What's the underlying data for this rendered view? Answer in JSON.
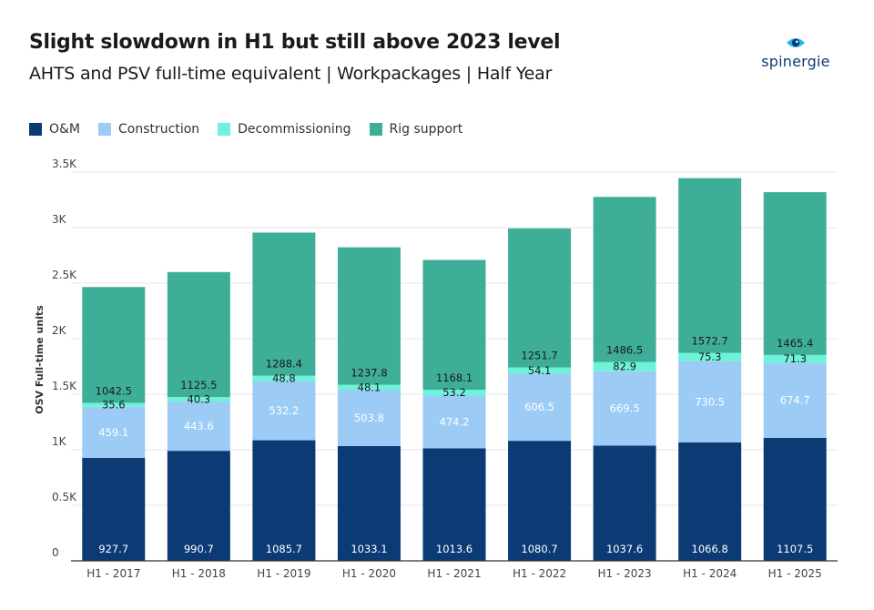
{
  "header": {
    "title": "Slight slowdown in H1 but still above 2023 level",
    "subtitle": "AHTS and PSV full-time equivalent | Workpackages | Half Year"
  },
  "brand": {
    "name": "spinergie",
    "icon": "eye-logo-icon"
  },
  "colors": {
    "om": "#0b3a75",
    "construction": "#9ccbf6",
    "decommissioning": "#6ef2d9",
    "rig_support": "#3fae98"
  },
  "legend": [
    {
      "label": "O&M",
      "color": "#0b3a75"
    },
    {
      "label": "Construction",
      "color": "#9ccbf6"
    },
    {
      "label": "Decommissioning",
      "color": "#6ef2d9"
    },
    {
      "label": "Rig support",
      "color": "#3fae98"
    }
  ],
  "chart_data": {
    "type": "bar",
    "stacked": true,
    "categories": [
      "H1 - 2017",
      "H1 - 2018",
      "H1 - 2019",
      "H1 - 2020",
      "H1 - 2021",
      "H1 - 2022",
      "H1 - 2023",
      "H1 - 2024",
      "H1 - 2025"
    ],
    "series": [
      {
        "name": "O&M",
        "values": [
          927.7,
          990.7,
          1085.7,
          1033.1,
          1013.6,
          1080.7,
          1037.6,
          1066.8,
          1107.5
        ]
      },
      {
        "name": "Construction",
        "values": [
          459.1,
          443.6,
          532.2,
          503.8,
          474.2,
          606.5,
          669.5,
          730.5,
          674.7
        ]
      },
      {
        "name": "Decommissioning",
        "values": [
          35.6,
          40.3,
          48.8,
          48.1,
          53.2,
          54.1,
          82.9,
          75.3,
          71.3
        ]
      },
      {
        "name": "Rig support",
        "values": [
          1042.5,
          1125.5,
          1288.4,
          1237.8,
          1168.1,
          1251.7,
          1486.5,
          1572.7,
          1465.4
        ]
      }
    ],
    "ylabel": "OSV Full-time units",
    "xlabel": "",
    "ylim": [
      0,
      3500
    ],
    "yticks": [
      0,
      500,
      1000,
      1500,
      2000,
      2500,
      3000,
      3500
    ],
    "ytick_labels": [
      "0",
      "0.5K",
      "1K",
      "1.5K",
      "2K",
      "2.5K",
      "3K",
      "3.5K"
    ],
    "grid": "horizontal",
    "legend_position": "top-left"
  }
}
